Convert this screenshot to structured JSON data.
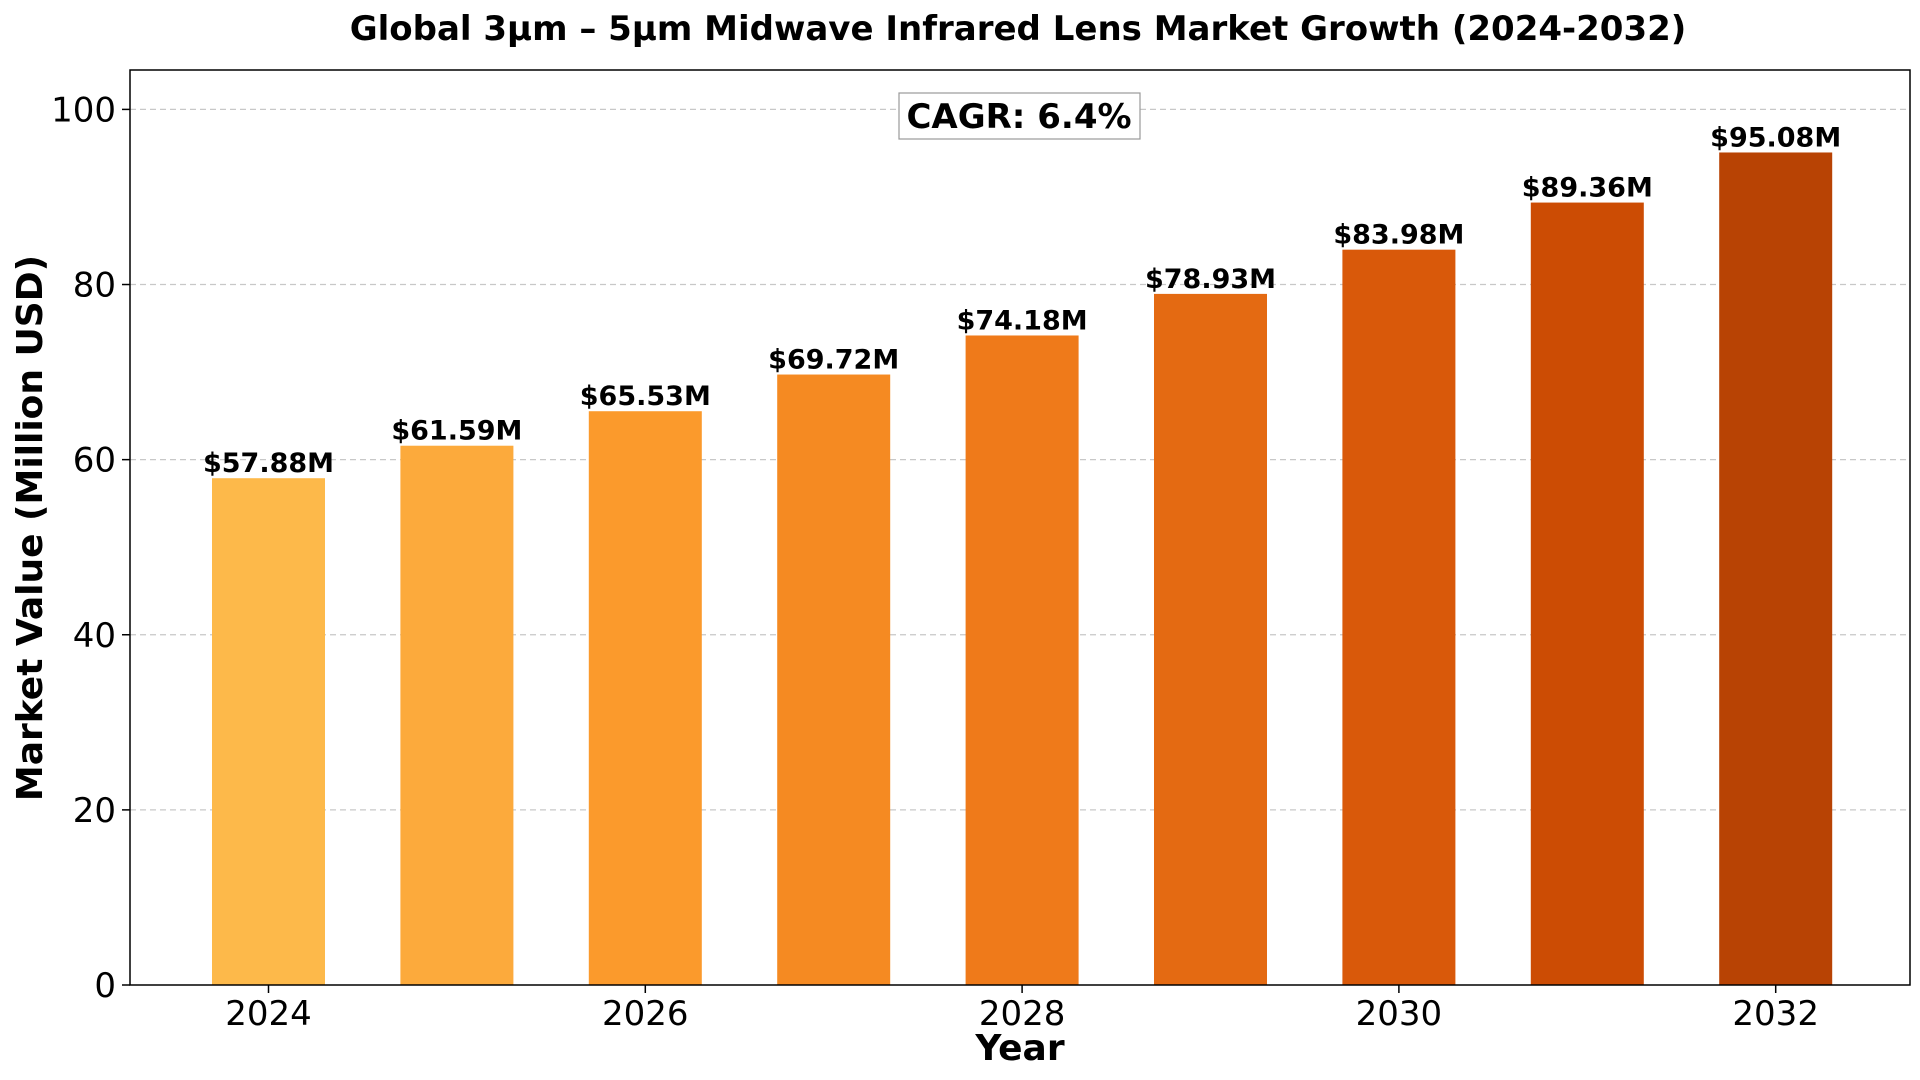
{
  "chart_data": {
    "type": "bar",
    "title": "Global 3µm – 5µm Midwave Infrared Lens Market Growth (2024-2032)",
    "xlabel": "Year",
    "ylabel": "Market Value (Million USD)",
    "categories": [
      "2024",
      "2025",
      "2026",
      "2027",
      "2028",
      "2029",
      "2030",
      "2031",
      "2032"
    ],
    "values": [
      57.88,
      61.59,
      65.53,
      69.72,
      74.18,
      78.93,
      83.98,
      89.36,
      95.08
    ],
    "data_labels": [
      "$57.88M",
      "$61.59M",
      "$65.53M",
      "$69.72M",
      "$74.18M",
      "$78.93M",
      "$83.98M",
      "$89.36M",
      "$95.08M"
    ],
    "colors": [
      "#FDB94A",
      "#FCAA3C",
      "#FB9A2C",
      "#F58A22",
      "#EF7A1A",
      "#E46A12",
      "#D9590A",
      "#CC4C04",
      "#B84304"
    ],
    "ylim": [
      0,
      104.5
    ],
    "yticks": [
      0,
      20,
      40,
      60,
      80,
      100
    ],
    "xticks_shown": [
      "2024",
      "2026",
      "2028",
      "2030",
      "2032"
    ],
    "grid": "y-dashed",
    "annotation": "CAGR: 6.4%"
  }
}
